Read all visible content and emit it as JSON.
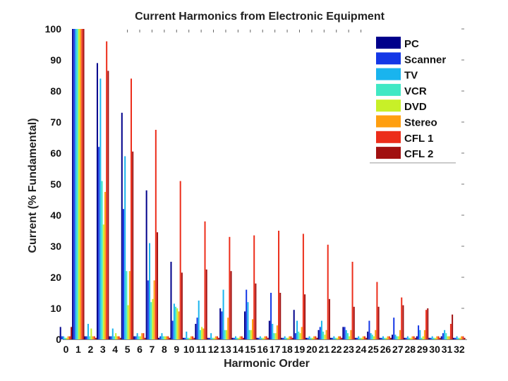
{
  "chart_data": {
    "type": "bar",
    "title": "Current Harmonics from Electronic Equipment",
    "xlabel": "Harmonic Order",
    "ylabel": "Current (% Fundamental)",
    "ylim": [
      0,
      100
    ],
    "yticks": [
      0,
      10,
      20,
      30,
      40,
      50,
      60,
      70,
      80,
      90,
      100
    ],
    "categories": [
      "0",
      "1",
      "2",
      "3",
      "4",
      "5",
      "6",
      "7",
      "8",
      "9",
      "10",
      "11",
      "12",
      "13",
      "14",
      "15",
      "16",
      "17",
      "18",
      "19",
      "20",
      "21",
      "22",
      "23",
      "24",
      "25",
      "26",
      "27",
      "28",
      "29",
      "30",
      "31",
      "32"
    ],
    "legend_position": "top-right",
    "series": [
      {
        "name": "PC",
        "color": "#00008b",
        "values": [
          4,
          100,
          1,
          89,
          1,
          73,
          1,
          48,
          0.5,
          25,
          0.5,
          5,
          0.5,
          10,
          0.5,
          9,
          0.5,
          6,
          0.5,
          9.5,
          0.5,
          3,
          0.5,
          4,
          0.5,
          2.5,
          0.5,
          1.5,
          0.5,
          1,
          0.5,
          1,
          0.5
        ]
      },
      {
        "name": "Scanner",
        "color": "#1437e6",
        "values": [
          1,
          100,
          1,
          62,
          1,
          42,
          1,
          19,
          1,
          6,
          0.5,
          7,
          0.5,
          9,
          0.5,
          16,
          0.5,
          15,
          0.5,
          2,
          0.5,
          4,
          0.5,
          4,
          0.5,
          6,
          0.5,
          7,
          0.5,
          4.5,
          0.5,
          2,
          0.5
        ]
      },
      {
        "name": "TV",
        "color": "#19b4ee",
        "values": [
          1,
          100,
          5,
          84,
          3.5,
          59,
          2,
          31,
          2,
          11.5,
          2.5,
          12.5,
          2,
          16,
          1,
          12,
          1,
          5,
          1,
          6,
          1,
          6,
          1,
          3,
          1,
          2,
          1,
          1.5,
          1,
          3,
          1,
          3,
          1
        ]
      },
      {
        "name": "VCR",
        "color": "#40e8c4",
        "values": [
          0.5,
          100,
          1,
          51,
          1,
          22,
          1,
          12,
          1,
          10.5,
          0.5,
          3,
          0.5,
          3,
          0.5,
          3,
          0.5,
          2,
          0.5,
          2.5,
          0.5,
          2.5,
          0.5,
          2,
          0.5,
          1.5,
          0.5,
          1,
          0.5,
          0.5,
          0.5,
          2,
          0.5
        ]
      },
      {
        "name": "DVD",
        "color": "#c8f028",
        "values": [
          0.5,
          100,
          3.5,
          37,
          2,
          11,
          1,
          13,
          1,
          10,
          0.5,
          4,
          0.5,
          3,
          0.5,
          3,
          0.5,
          2,
          0.5,
          2,
          0.5,
          1.5,
          0.5,
          1,
          0.5,
          1,
          0.5,
          1,
          0.5,
          1,
          0.5,
          1,
          0.5
        ]
      },
      {
        "name": "Stereo",
        "color": "#ff9f10",
        "values": [
          1,
          100,
          1,
          47.5,
          1,
          22,
          2,
          19,
          1,
          9,
          1,
          3.5,
          1,
          7,
          1,
          6.5,
          1,
          4.5,
          1,
          4,
          1,
          3,
          1,
          3,
          1,
          3,
          1,
          3,
          1,
          3,
          1,
          1,
          1
        ]
      },
      {
        "name": "CFL 1",
        "color": "#ec2d1a",
        "values": [
          1,
          100,
          1,
          96,
          1,
          84,
          2,
          67.5,
          1,
          51,
          1,
          38,
          1,
          33,
          1,
          33.5,
          1,
          35,
          1,
          34,
          1,
          30.5,
          1,
          25,
          1,
          18.5,
          1,
          13.5,
          1,
          9.5,
          1,
          5,
          1
        ]
      },
      {
        "name": "CFL 2",
        "color": "#a11010",
        "values": [
          4,
          100,
          0.5,
          86.5,
          0.5,
          60.5,
          0.5,
          34.5,
          0.5,
          21.5,
          0.5,
          22.5,
          0.5,
          22,
          0.5,
          18,
          0.5,
          15,
          0.5,
          14.5,
          0.5,
          13,
          0.5,
          10.5,
          0.5,
          10.5,
          0.5,
          11,
          0.5,
          10,
          0.5,
          8,
          0.5
        ]
      }
    ]
  }
}
